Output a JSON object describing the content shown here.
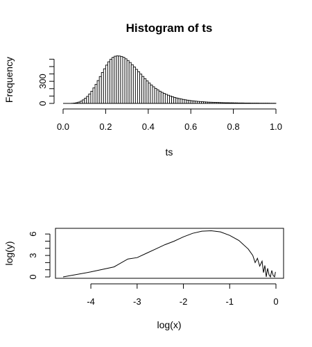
{
  "chart_data": [
    {
      "type": "bar",
      "title": "Histogram of ts",
      "xlabel": "ts",
      "ylabel": "Frequency",
      "xlim": [
        0,
        1
      ],
      "ylim": [
        0,
        650
      ],
      "xticks": [
        0.0,
        0.2,
        0.4,
        0.6,
        0.8,
        1.0
      ],
      "xtick_labels": [
        "0.0",
        "0.2",
        "0.4",
        "0.6",
        "0.8",
        "1.0"
      ],
      "yticks": [
        0,
        100,
        200,
        300,
        400,
        500,
        600
      ],
      "ytick_labels": [
        "0",
        "",
        "",
        "300",
        "",
        "",
        ""
      ],
      "bin_width": 0.01,
      "bin_start": 0.0,
      "values": [
        0,
        0,
        0,
        0,
        2,
        5,
        10,
        18,
        30,
        48,
        70,
        95,
        128,
        165,
        210,
        258,
        310,
        365,
        420,
        470,
        520,
        565,
        600,
        625,
        640,
        645,
        643,
        637,
        625,
        605,
        582,
        555,
        525,
        495,
        462,
        430,
        398,
        366,
        335,
        305,
        276,
        250,
        226,
        204,
        184,
        166,
        150,
        136,
        123,
        111,
        100,
        90,
        81,
        73,
        66,
        60,
        54,
        49,
        44,
        40,
        36,
        33,
        30,
        27,
        25,
        23,
        21,
        19,
        17,
        16,
        15,
        14,
        13,
        12,
        11,
        10,
        9,
        9,
        8,
        8,
        7,
        7,
        6,
        6,
        6,
        5,
        5,
        5,
        4,
        4,
        4,
        4,
        3,
        3,
        3,
        3,
        3,
        2,
        2,
        2
      ]
    },
    {
      "type": "line",
      "title": "",
      "xlabel": "log(x)",
      "ylabel": "log(y)",
      "xlim": [
        -4.6,
        0
      ],
      "ylim": [
        0,
        6.6
      ],
      "xticks": [
        -4,
        -3,
        -2,
        -1,
        0
      ],
      "xtick_labels": [
        "-4",
        "-3",
        "-2",
        "-1",
        "0"
      ],
      "yticks": [
        0,
        1,
        2,
        3,
        4,
        5,
        6
      ],
      "ytick_labels": [
        "0",
        "",
        "",
        "3",
        "",
        "",
        "6"
      ],
      "x": [
        -4.6,
        -4.0,
        -3.5,
        -3.2,
        -3.0,
        -2.8,
        -2.6,
        -2.4,
        -2.2,
        -2.0,
        -1.8,
        -1.6,
        -1.4,
        -1.2,
        -1.0,
        -0.8,
        -0.6,
        -0.5,
        -0.45,
        -0.4,
        -0.35,
        -0.3,
        -0.27,
        -0.24,
        -0.21,
        -0.18,
        -0.15,
        -0.12,
        -0.09,
        -0.06,
        -0.03,
        -0.01
      ],
      "y": [
        0.0,
        0.7,
        1.4,
        2.5,
        2.7,
        3.3,
        3.9,
        4.5,
        5.0,
        5.6,
        6.1,
        6.4,
        6.45,
        6.3,
        5.8,
        5.1,
        3.9,
        3.0,
        2.0,
        2.6,
        1.5,
        2.2,
        0.6,
        1.6,
        0.0,
        1.2,
        0.3,
        0.0,
        0.9,
        0.2,
        0.0,
        0.7
      ]
    }
  ]
}
